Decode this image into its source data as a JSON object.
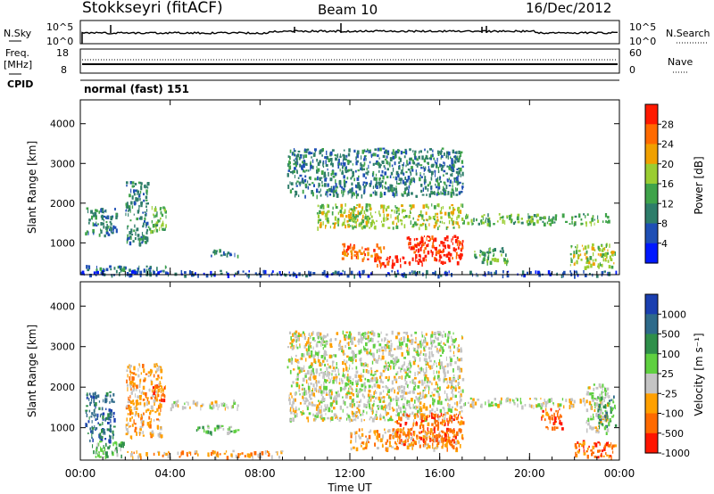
{
  "header": {
    "title": "Stokkseyri (fitACF)",
    "beam": "Beam 10",
    "date": "16/Dec/2012"
  },
  "top_panels": {
    "nsky": {
      "label": "N.Sky",
      "ticks": [
        "10^5",
        "10^0"
      ]
    },
    "nsearch": {
      "label": "N.Search",
      "ticks": [
        "10^5",
        "10^0"
      ]
    },
    "freq": {
      "label": "Freq.",
      "unit": "[MHz]",
      "ticks": [
        "18",
        "8"
      ]
    },
    "nave": {
      "label": "Nave",
      "ticks": [
        "60",
        "0"
      ]
    },
    "cpid": {
      "label": "CPID",
      "value": "normal (fast) 151"
    }
  },
  "chart_data": [
    {
      "type": "heatmap",
      "name": "power",
      "ylabel": "Slant Range [km]",
      "ylim": [
        200,
        4600
      ],
      "yticks": [
        1000,
        2000,
        3000,
        4000
      ],
      "colorbar_label": "Power [dB]",
      "colorbar_ticks": [
        "4",
        "8",
        "12",
        "16",
        "20",
        "24",
        "28"
      ],
      "colors": [
        "#0018ff",
        "#1f4fb5",
        "#2e7d6a",
        "#3fa34a",
        "#9acd32",
        "#f0a000",
        "#ff6a00",
        "#ff1a00"
      ],
      "blobs": [
        {
          "t0": 0.2,
          "t1": 1.6,
          "r0": 1200,
          "r1": 1900,
          "lvl": 2
        },
        {
          "t0": 0.2,
          "t1": 3.8,
          "r0": 300,
          "r1": 450,
          "lvl": 2
        },
        {
          "t0": 2.0,
          "t1": 3.0,
          "r0": 1000,
          "r1": 2600,
          "lvl": 2
        },
        {
          "t0": 3.0,
          "t1": 3.8,
          "r0": 1300,
          "r1": 2000,
          "lvl": 3
        },
        {
          "t0": 5.8,
          "t1": 7.0,
          "r0": 700,
          "r1": 850,
          "lvl": 2
        },
        {
          "t0": 9.2,
          "t1": 17.0,
          "r0": 2200,
          "r1": 3400,
          "lvl": 2
        },
        {
          "t0": 10.5,
          "t1": 17.0,
          "r0": 1400,
          "r1": 2000,
          "lvl": 4
        },
        {
          "t0": 11.6,
          "t1": 13.5,
          "r0": 600,
          "r1": 1000,
          "lvl": 6
        },
        {
          "t0": 13.0,
          "t1": 14.5,
          "r0": 450,
          "r1": 700,
          "lvl": 7
        },
        {
          "t0": 14.5,
          "t1": 17.0,
          "r0": 500,
          "r1": 1200,
          "lvl": 7
        },
        {
          "t0": 17.0,
          "t1": 23.5,
          "r0": 1500,
          "r1": 1750,
          "lvl": 3
        },
        {
          "t0": 17.5,
          "t1": 19.0,
          "r0": 500,
          "r1": 900,
          "lvl": 3
        },
        {
          "t0": 21.8,
          "t1": 23.8,
          "r0": 400,
          "r1": 1000,
          "lvl": 4
        },
        {
          "t0": 0.0,
          "t1": 24.0,
          "r0": 200,
          "r1": 320,
          "lvl": 1
        }
      ]
    },
    {
      "type": "heatmap",
      "name": "velocity",
      "xlabel": "Time UT",
      "ylabel": "Slant Range [km]",
      "ylim": [
        200,
        4600
      ],
      "yticks": [
        1000,
        2000,
        3000,
        4000
      ],
      "colorbar_label": "Velocity [m s⁻¹]",
      "colorbar_ticks": [
        "1000",
        "500",
        "100",
        "25",
        "-25",
        "-100",
        "-500",
        "-1000"
      ],
      "colors": [
        "#1a3fb0",
        "#2e6a8a",
        "#2f8f4a",
        "#5fd040",
        "#c4c4c4",
        "#ffa000",
        "#ff6a00",
        "#ff1500"
      ],
      "xticks": [
        "00:00",
        "04:00",
        "08:00",
        "12:00",
        "16:00",
        "20:00",
        "00:00"
      ],
      "xlim": [
        0,
        24
      ],
      "blobs": [
        {
          "t0": 0.2,
          "t1": 1.5,
          "r0": 700,
          "r1": 1900,
          "lvl": 1
        },
        {
          "t0": 0.5,
          "t1": 2.0,
          "r0": 300,
          "r1": 700,
          "lvl": 3
        },
        {
          "t0": 2.0,
          "t1": 3.6,
          "r0": 800,
          "r1": 2600,
          "lvl": 5
        },
        {
          "t0": 3.2,
          "t1": 3.8,
          "r0": 1700,
          "r1": 2100,
          "lvl": 6
        },
        {
          "t0": 2.0,
          "t1": 9.0,
          "r0": 300,
          "r1": 450,
          "lvl": 5
        },
        {
          "t0": 4.0,
          "t1": 7.0,
          "r0": 1500,
          "r1": 1700,
          "lvl": 4
        },
        {
          "t0": 5.0,
          "t1": 7.0,
          "r0": 900,
          "r1": 1100,
          "lvl": 3
        },
        {
          "t0": 9.2,
          "t1": 17.0,
          "r0": 1200,
          "r1": 3400,
          "lvl": 4
        },
        {
          "t0": 12.0,
          "t1": 17.0,
          "r0": 500,
          "r1": 1000,
          "lvl": 5
        },
        {
          "t0": 14.0,
          "t1": 17.0,
          "r0": 600,
          "r1": 1400,
          "lvl": 6
        },
        {
          "t0": 17.0,
          "t1": 23.0,
          "r0": 1550,
          "r1": 1750,
          "lvl": 4
        },
        {
          "t0": 20.5,
          "t1": 21.5,
          "r0": 1000,
          "r1": 1500,
          "lvl": 6
        },
        {
          "t0": 22.0,
          "t1": 23.8,
          "r0": 300,
          "r1": 700,
          "lvl": 6
        },
        {
          "t0": 22.5,
          "t1": 23.5,
          "r0": 900,
          "r1": 2100,
          "lvl": 4
        },
        {
          "t0": 23.0,
          "t1": 23.8,
          "r0": 1000,
          "r1": 1800,
          "lvl": 2
        }
      ]
    }
  ]
}
